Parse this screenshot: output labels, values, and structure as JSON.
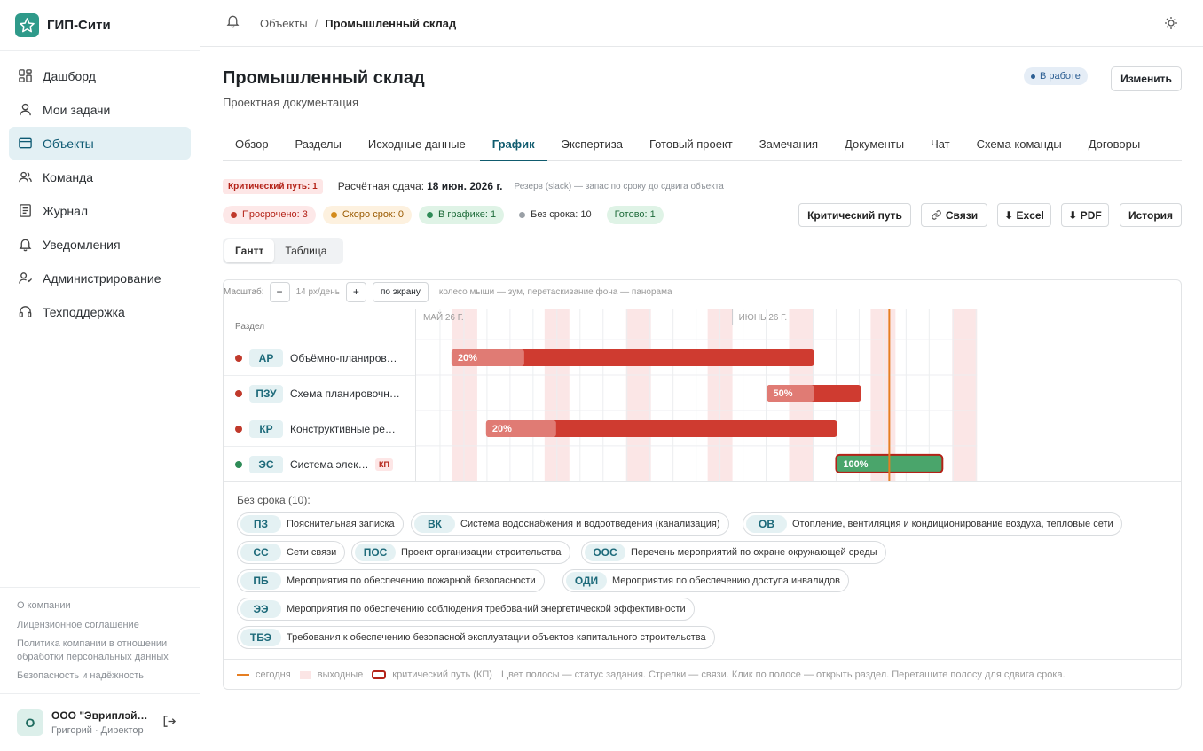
{
  "app": {
    "name": "ГИП-Сити"
  },
  "sidebar": {
    "items": [
      {
        "label": "Дашборд",
        "icon": "dashboard-icon"
      },
      {
        "label": "Мои задачи",
        "icon": "user-icon"
      },
      {
        "label": "Объекты",
        "icon": "folder-icon",
        "active": true
      },
      {
        "label": "Команда",
        "icon": "team-icon"
      },
      {
        "label": "Журнал",
        "icon": "journal-icon"
      },
      {
        "label": "Уведомления",
        "icon": "bell-icon"
      },
      {
        "label": "Администрирование",
        "icon": "admin-icon"
      },
      {
        "label": "Техподдержка",
        "icon": "headset-icon"
      }
    ],
    "footer_links": [
      "О компании",
      "Лицензионное соглашение",
      "Политика компании в отношении обработки персональных данных",
      "Безопасность и надёжность"
    ],
    "user": {
      "avatar": "О",
      "name": "ООО \"Эвриплэй…",
      "role": "Григорий · Директор"
    }
  },
  "topbar": {
    "crumb_root": "Объекты",
    "crumb_sep": "/",
    "crumb_current": "Промышленный склад"
  },
  "page": {
    "title": "Промышленный склад",
    "subtitle": "Проектная документация",
    "status": "В работе",
    "edit_label": "Изменить"
  },
  "tabs": [
    "Обзор",
    "Разделы",
    "Исходные данные",
    "График",
    "Экспертиза",
    "Готовый проект",
    "Замечания",
    "Документы",
    "Чат",
    "Схема команды",
    "Договоры"
  ],
  "active_tab": "График",
  "schedule": {
    "critical_badge": "Критический путь: 1",
    "due_label": "Расчётная сдача:",
    "due_value": "18 июн. 2026 г.",
    "slack_note": "Резерв (slack) — запас по сроку до сдвига объекта",
    "chips": [
      {
        "label": "Просрочено: 3",
        "bg": "#fde8e8",
        "fg": "#b42318",
        "dot": "#c0392b"
      },
      {
        "label": "Скоро срок: 0",
        "bg": "#fdf1df",
        "fg": "#9a5a00",
        "dot": "#d38a1a"
      },
      {
        "label": "В графике: 1",
        "bg": "#dff3e6",
        "fg": "#1e6b3a",
        "dot": "#2e8b57"
      },
      {
        "label": "Без срока: 10",
        "bg": "#ffffff",
        "fg": "#333333",
        "dot": "#9aa0a6"
      },
      {
        "label": "Готово: 1",
        "bg": "#dff3e6",
        "fg": "#1e6b3a",
        "dot": ""
      }
    ],
    "buttons": {
      "critical": "Критический путь",
      "links": "Связи",
      "excel": "⬇ Excel",
      "pdf": "⬇ PDF",
      "history": "История"
    }
  },
  "view_tabs": {
    "gantt": "Гантт",
    "table": "Таблица"
  },
  "scale": {
    "label": "Масштаб:",
    "minus": "−",
    "value": "14 px/день",
    "plus": "+",
    "fit": "по экрану",
    "hint": "колесо мыши — зум, перетаскивание фона — панорама"
  },
  "gantt": {
    "column_header": "Раздел",
    "months": [
      "МАЙ 26 Г.",
      "ИЮНЬ 26 Г."
    ],
    "rows": [
      {
        "code": "АР",
        "name": "Объёмно-планировочные решения",
        "progress": "20%",
        "status": "overdue",
        "critical": false
      },
      {
        "code": "ПЗУ",
        "name": "Схема планировочной организации земельного участка",
        "progress": "50%",
        "status": "overdue",
        "critical": false
      },
      {
        "code": "КР",
        "name": "Конструктивные решения",
        "progress": "20%",
        "status": "overdue",
        "critical": false
      },
      {
        "code": "ЭС",
        "name": "Система электроснабжения",
        "progress": "100%",
        "status": "ontrack",
        "critical": true,
        "kp": "КП"
      }
    ]
  },
  "no_date": {
    "title": "Без срока (10):",
    "items": [
      {
        "code": "ПЗ",
        "name": "Пояснительная записка"
      },
      {
        "code": "ВК",
        "name": "Система водоснабжения и водоотведения (канализация)"
      },
      {
        "code": "ОВ",
        "name": "Отопление, вентиляция и кондиционирование воздуха, тепловые сети"
      },
      {
        "code": "СС",
        "name": "Сети связи"
      },
      {
        "code": "ПОС",
        "name": "Проект организации строительства"
      },
      {
        "code": "ООС",
        "name": "Перечень мероприятий по охране окружающей среды"
      },
      {
        "code": "ПБ",
        "name": "Мероприятия по обеспечению пожарной безопасности"
      },
      {
        "code": "ОДИ",
        "name": "Мероприятия по обеспечению доступа инвалидов"
      },
      {
        "code": "ЭЭ",
        "name": "Мероприятия по обеспечению соблюдения требований энергетической эффективности"
      },
      {
        "code": "ТБЭ",
        "name": "Требования к обеспечению безопасной эксплуатации объектов капитального строительства"
      }
    ]
  },
  "legend": {
    "today": "сегодня",
    "weekends": "выходные",
    "critical": "критический путь (КП)",
    "note": "Цвет полосы — статус задания. Стрелки — связи. Клик по полосе — открыть раздел. Перетащите полосу для сдвига срока."
  }
}
